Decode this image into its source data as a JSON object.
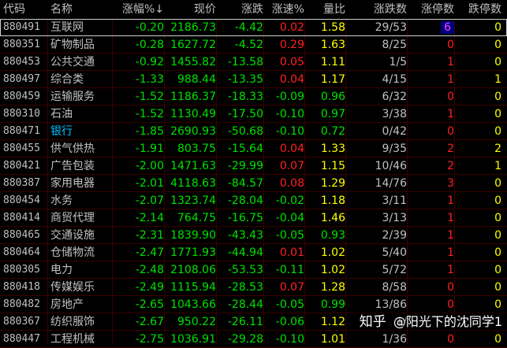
{
  "columns": [
    "代码",
    "名称",
    "涨幅%↓",
    "现价",
    "涨跌",
    "涨速%",
    "量比",
    "涨跌数",
    "涨停数",
    "跌停数"
  ],
  "colors": {
    "header": "#c0c0c0",
    "code": "#c0c0c0",
    "name": "#c0c0c0",
    "name_highlight": "#00c0ff",
    "negative": "#00e000",
    "positive": "#ff2020",
    "price": "#00e000",
    "ratio_up": "#ffff00",
    "ratio_down": "#00e000",
    "counts": "#c0c0c0",
    "zt_nonzero": "#ff2020",
    "zt_zero": "#ff2020",
    "zt_magenta": "#ff40ff",
    "dt_nonzero": "#ffff00",
    "dt_zero": "#ffff00"
  },
  "rows": [
    {
      "code": "880491",
      "name": "互联网",
      "pct": "-0.20",
      "price": "2186.73",
      "chg": "-4.42",
      "speed": "0.02",
      "ratio": "1.58",
      "updown": "29/53",
      "zt": "6",
      "dt": "0"
    },
    {
      "code": "880351",
      "name": "矿物制品",
      "pct": "-0.28",
      "price": "1627.72",
      "chg": "-4.52",
      "speed": "0.29",
      "ratio": "1.63",
      "updown": "8/25",
      "zt": "0",
      "dt": "0"
    },
    {
      "code": "880453",
      "name": "公共交通",
      "pct": "-0.92",
      "price": "1455.82",
      "chg": "-13.58",
      "speed": "0.05",
      "ratio": "1.11",
      "updown": "1/5",
      "zt": "1",
      "dt": "0"
    },
    {
      "code": "880497",
      "name": "综合类",
      "pct": "-1.33",
      "price": "988.44",
      "chg": "-13.35",
      "speed": "0.04",
      "ratio": "1.17",
      "updown": "4/15",
      "zt": "1",
      "dt": "1"
    },
    {
      "code": "880459",
      "name": "运输服务",
      "pct": "-1.52",
      "price": "1186.37",
      "chg": "-18.33",
      "speed": "-0.09",
      "ratio": "0.96",
      "updown": "6/32",
      "zt": "0",
      "dt": "0"
    },
    {
      "code": "880310",
      "name": "石油",
      "pct": "-1.52",
      "price": "1130.49",
      "chg": "-17.50",
      "speed": "-0.10",
      "ratio": "0.97",
      "updown": "3/38",
      "zt": "1",
      "dt": "0"
    },
    {
      "code": "880471",
      "name": "银行",
      "pct": "-1.85",
      "price": "2690.93",
      "chg": "-50.68",
      "speed": "-0.10",
      "ratio": "0.72",
      "updown": "0/42",
      "zt": "0",
      "dt": "0",
      "highlight": true
    },
    {
      "code": "880455",
      "name": "供气供热",
      "pct": "-1.91",
      "price": "803.75",
      "chg": "-15.64",
      "speed": "0.04",
      "ratio": "1.33",
      "updown": "9/35",
      "zt": "2",
      "dt": "2"
    },
    {
      "code": "880421",
      "name": "广告包装",
      "pct": "-2.00",
      "price": "1471.63",
      "chg": "-29.99",
      "speed": "0.07",
      "ratio": "1.15",
      "updown": "10/46",
      "zt": "2",
      "dt": "1"
    },
    {
      "code": "880387",
      "name": "家用电器",
      "pct": "-2.01",
      "price": "4118.63",
      "chg": "-84.57",
      "speed": "0.08",
      "ratio": "1.29",
      "updown": "14/76",
      "zt": "3",
      "dt": "0"
    },
    {
      "code": "880454",
      "name": "水务",
      "pct": "-2.07",
      "price": "1323.74",
      "chg": "-28.04",
      "speed": "-0.02",
      "ratio": "1.18",
      "updown": "3/11",
      "zt": "1",
      "dt": "0"
    },
    {
      "code": "880414",
      "name": "商贸代理",
      "pct": "-2.14",
      "price": "764.75",
      "chg": "-16.75",
      "speed": "-0.04",
      "ratio": "1.46",
      "updown": "3/13",
      "zt": "1",
      "dt": "0"
    },
    {
      "code": "880465",
      "name": "交通设施",
      "pct": "-2.31",
      "price": "1839.90",
      "chg": "-43.43",
      "speed": "-0.05",
      "ratio": "0.93",
      "updown": "2/39",
      "zt": "1",
      "dt": "0"
    },
    {
      "code": "880464",
      "name": "仓储物流",
      "pct": "-2.47",
      "price": "1771.93",
      "chg": "-44.94",
      "speed": "0.01",
      "ratio": "1.02",
      "updown": "5/40",
      "zt": "1",
      "dt": "0"
    },
    {
      "code": "880305",
      "name": "电力",
      "pct": "-2.48",
      "price": "2108.06",
      "chg": "-53.53",
      "speed": "-0.11",
      "ratio": "1.02",
      "updown": "5/72",
      "zt": "1",
      "dt": "0"
    },
    {
      "code": "880418",
      "name": "传媒娱乐",
      "pct": "-2.49",
      "price": "1115.94",
      "chg": "-28.53",
      "speed": "0.07",
      "ratio": "1.28",
      "updown": "8/58",
      "zt": "0",
      "dt": "0"
    },
    {
      "code": "880482",
      "name": "房地产",
      "pct": "-2.65",
      "price": "1043.66",
      "chg": "-28.44",
      "speed": "-0.05",
      "ratio": "0.99",
      "updown": "13/86",
      "zt": "0",
      "dt": "0"
    },
    {
      "code": "880367",
      "name": "纺织服饰",
      "pct": "-2.67",
      "price": "950.22",
      "chg": "-26.11",
      "speed": "-0.06",
      "ratio": "1.12",
      "updown": "1/",
      "zt": "",
      "dt": ""
    },
    {
      "code": "880447",
      "name": "工程机械",
      "pct": "-2.75",
      "price": "1036.91",
      "chg": "-29.28",
      "speed": "-0.10",
      "ratio": "1.01",
      "updown": "1/36",
      "zt": "0",
      "dt": "0"
    }
  ],
  "watermark": {
    "logo": "知乎",
    "text": "@阳光下的沈同学1"
  }
}
